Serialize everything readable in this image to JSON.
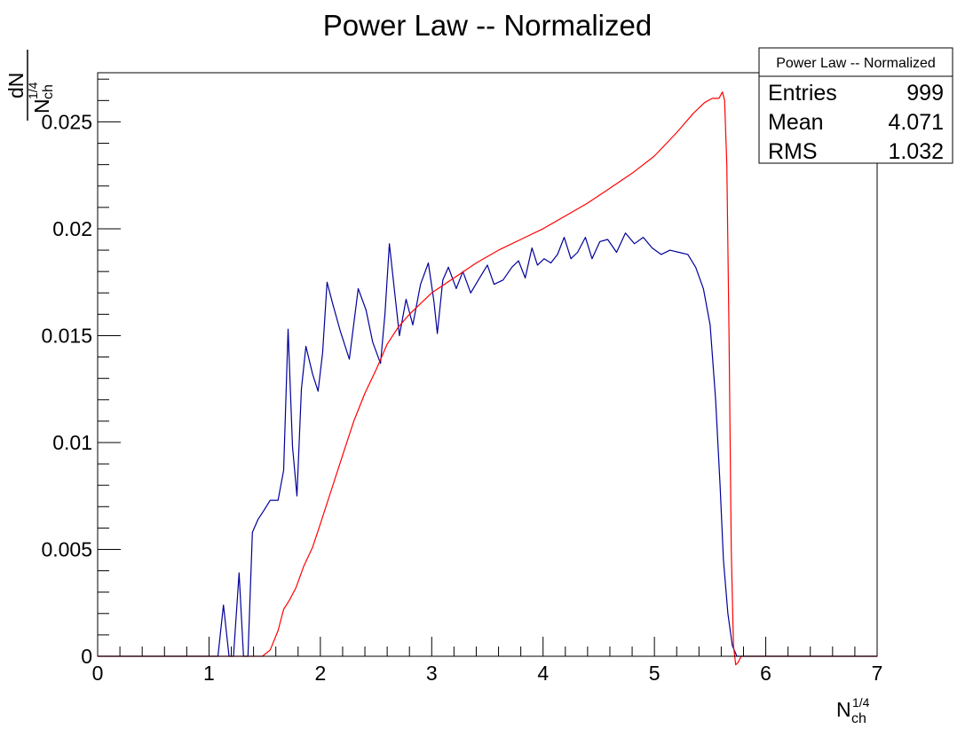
{
  "chart_data": {
    "type": "line",
    "title": "Power Law -- Normalized",
    "ylabel_num": "dN",
    "ylabel_den_base": "N",
    "ylabel_den_sub": "ch",
    "ylabel_den_sup": "1/4",
    "xlabel_base": "N",
    "xlabel_sub": "ch",
    "xlabel_sup": "1/4",
    "xlim": [
      0,
      7
    ],
    "ylim": [
      0,
      0.0273
    ],
    "x_ticks": [
      0,
      1,
      2,
      3,
      4,
      5,
      6,
      7
    ],
    "x_tick_labels": [
      "0",
      "1",
      "2",
      "3",
      "4",
      "5",
      "6",
      "7"
    ],
    "y_ticks": [
      0,
      0.005,
      0.01,
      0.015,
      0.02,
      0.025
    ],
    "y_tick_labels": [
      "0",
      "0.005",
      "0.01",
      "0.015",
      "0.02",
      "0.025"
    ],
    "grid": false,
    "legend": "none",
    "series": [
      {
        "color": "#000099",
        "points": [
          [
            0,
            0
          ],
          [
            1.0,
            0
          ],
          [
            1.08,
            0
          ],
          [
            1.13,
            0.0024
          ],
          [
            1.18,
            0
          ],
          [
            1.22,
            0
          ],
          [
            1.27,
            0.0039
          ],
          [
            1.31,
            0
          ],
          [
            1.35,
            0
          ],
          [
            1.39,
            0.0058
          ],
          [
            1.44,
            0.0064
          ],
          [
            1.49,
            0.0068
          ],
          [
            1.55,
            0.0073
          ],
          [
            1.62,
            0.0073
          ],
          [
            1.67,
            0.0087
          ],
          [
            1.71,
            0.0153
          ],
          [
            1.75,
            0.0098
          ],
          [
            1.79,
            0.0075
          ],
          [
            1.83,
            0.0125
          ],
          [
            1.87,
            0.0145
          ],
          [
            1.93,
            0.0132
          ],
          [
            1.98,
            0.0124
          ],
          [
            2.02,
            0.0142
          ],
          [
            2.06,
            0.0175
          ],
          [
            2.11,
            0.0165
          ],
          [
            2.18,
            0.0152
          ],
          [
            2.26,
            0.0139
          ],
          [
            2.34,
            0.0172
          ],
          [
            2.41,
            0.0162
          ],
          [
            2.47,
            0.0147
          ],
          [
            2.54,
            0.0137
          ],
          [
            2.58,
            0.016
          ],
          [
            2.62,
            0.0193
          ],
          [
            2.67,
            0.0169
          ],
          [
            2.71,
            0.015
          ],
          [
            2.77,
            0.0167
          ],
          [
            2.83,
            0.0155
          ],
          [
            2.9,
            0.0174
          ],
          [
            2.97,
            0.0184
          ],
          [
            3.02,
            0.0166
          ],
          [
            3.05,
            0.0151
          ],
          [
            3.1,
            0.0176
          ],
          [
            3.15,
            0.0182
          ],
          [
            3.22,
            0.0172
          ],
          [
            3.28,
            0.018
          ],
          [
            3.35,
            0.017
          ],
          [
            3.43,
            0.0177
          ],
          [
            3.5,
            0.0183
          ],
          [
            3.56,
            0.0174
          ],
          [
            3.64,
            0.0176
          ],
          [
            3.72,
            0.0182
          ],
          [
            3.78,
            0.0185
          ],
          [
            3.84,
            0.0177
          ],
          [
            3.9,
            0.0191
          ],
          [
            3.95,
            0.0183
          ],
          [
            4.01,
            0.0186
          ],
          [
            4.07,
            0.0184
          ],
          [
            4.13,
            0.0188
          ],
          [
            4.19,
            0.0196
          ],
          [
            4.25,
            0.0186
          ],
          [
            4.31,
            0.0189
          ],
          [
            4.38,
            0.0196
          ],
          [
            4.44,
            0.0186
          ],
          [
            4.51,
            0.0194
          ],
          [
            4.58,
            0.0195
          ],
          [
            4.66,
            0.0189
          ],
          [
            4.74,
            0.0198
          ],
          [
            4.82,
            0.0193
          ],
          [
            4.9,
            0.0196
          ],
          [
            4.98,
            0.0191
          ],
          [
            5.06,
            0.0188
          ],
          [
            5.14,
            0.019
          ],
          [
            5.22,
            0.0189
          ],
          [
            5.3,
            0.0188
          ],
          [
            5.37,
            0.0182
          ],
          [
            5.44,
            0.0172
          ],
          [
            5.5,
            0.0155
          ],
          [
            5.55,
            0.012
          ],
          [
            5.59,
            0.008
          ],
          [
            5.62,
            0.0045
          ],
          [
            5.66,
            0.002
          ],
          [
            5.7,
            0.0005
          ],
          [
            5.74,
            0
          ],
          [
            7.0,
            0
          ]
        ]
      },
      {
        "color": "#ff0000",
        "points": [
          [
            0,
            0
          ],
          [
            1.48,
            0
          ],
          [
            1.55,
            0.0003
          ],
          [
            1.62,
            0.0012
          ],
          [
            1.67,
            0.0022
          ],
          [
            1.72,
            0.0026
          ],
          [
            1.78,
            0.0032
          ],
          [
            1.85,
            0.0042
          ],
          [
            1.93,
            0.0051
          ],
          [
            2.0,
            0.0062
          ],
          [
            2.1,
            0.0078
          ],
          [
            2.2,
            0.0094
          ],
          [
            2.3,
            0.011
          ],
          [
            2.4,
            0.0123
          ],
          [
            2.5,
            0.0134
          ],
          [
            2.6,
            0.0146
          ],
          [
            2.7,
            0.0154
          ],
          [
            2.8,
            0.016
          ],
          [
            2.9,
            0.0165
          ],
          [
            3.0,
            0.017
          ],
          [
            3.2,
            0.0177
          ],
          [
            3.4,
            0.0184
          ],
          [
            3.6,
            0.019
          ],
          [
            3.8,
            0.0195
          ],
          [
            4.0,
            0.02
          ],
          [
            4.2,
            0.0206
          ],
          [
            4.4,
            0.0212
          ],
          [
            4.6,
            0.0219
          ],
          [
            4.8,
            0.0226
          ],
          [
            5.0,
            0.0234
          ],
          [
            5.2,
            0.0245
          ],
          [
            5.35,
            0.0254
          ],
          [
            5.45,
            0.0259
          ],
          [
            5.52,
            0.0261
          ],
          [
            5.58,
            0.0261
          ],
          [
            5.61,
            0.0264
          ],
          [
            5.63,
            0.026
          ],
          [
            5.65,
            0.023
          ],
          [
            5.67,
            0.015
          ],
          [
            5.69,
            0.005
          ],
          [
            5.71,
            0.0005
          ],
          [
            5.73,
            -0.0004
          ],
          [
            5.75,
            -0.0003
          ],
          [
            5.78,
            0
          ],
          [
            7.0,
            0
          ]
        ]
      }
    ]
  },
  "stats_box": {
    "title": "Power Law -- Normalized",
    "rows": [
      {
        "label": "Entries",
        "value": "999"
      },
      {
        "label": "Mean",
        "value": "4.071"
      },
      {
        "label": "RMS",
        "value": "1.032"
      }
    ]
  }
}
